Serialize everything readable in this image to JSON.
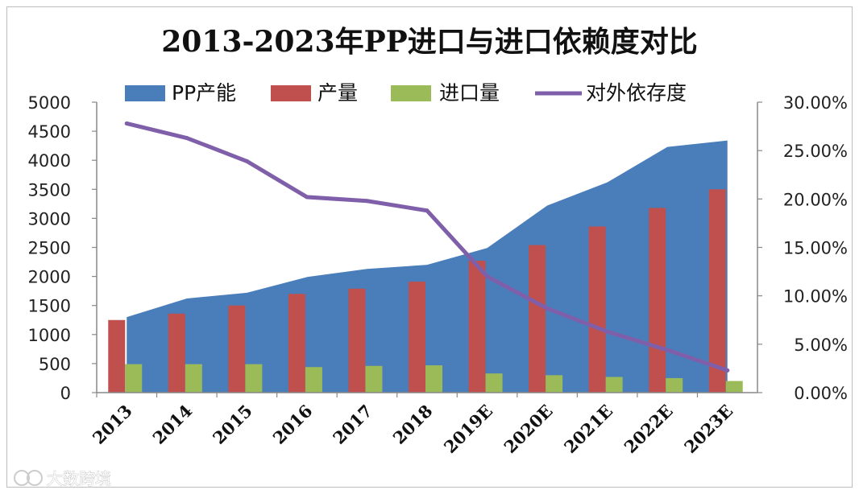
{
  "chart_data": {
    "type": "bar",
    "title": "2013-2023年PP进口与进口依赖度对比",
    "categories": [
      "2013",
      "2014",
      "2015",
      "2016",
      "2017",
      "2018",
      "2019E",
      "2020E",
      "2021E",
      "2022E",
      "2023E"
    ],
    "series": [
      {
        "name": "PP产能",
        "kind": "area",
        "axis": "left",
        "color": "#4a7ebb",
        "values": [
          1300,
          1620,
          1720,
          1990,
          2130,
          2200,
          2490,
          3220,
          3620,
          4230,
          4340
        ]
      },
      {
        "name": "产量",
        "kind": "bar",
        "axis": "left",
        "color": "#c0504d",
        "values": [
          1250,
          1360,
          1500,
          1700,
          1790,
          1910,
          2270,
          2540,
          2860,
          3180,
          3500
        ]
      },
      {
        "name": "进口量",
        "kind": "bar",
        "axis": "left",
        "color": "#9bbb59",
        "values": [
          490,
          490,
          490,
          440,
          460,
          470,
          330,
          300,
          270,
          250,
          200
        ]
      },
      {
        "name": "对外依存度",
        "kind": "line",
        "axis": "right",
        "color": "#7f5fa9",
        "values": [
          27.8,
          26.3,
          23.9,
          20.2,
          19.8,
          18.8,
          12.0,
          8.7,
          6.3,
          4.4,
          2.3
        ]
      }
    ],
    "ylim": [
      0,
      5000
    ],
    "yticks": [
      "5000",
      "4500",
      "4000",
      "3500",
      "3000",
      "2500",
      "2000",
      "1500",
      "1000",
      "500",
      "0"
    ],
    "y2lim": [
      0,
      30
    ],
    "y2ticks": [
      "30.00%",
      "25.00%",
      "20.00%",
      "15.00%",
      "10.00%",
      "5.00%",
      "0.00%"
    ],
    "legend": "top",
    "grid": false
  },
  "watermark": {
    "text": "大数跨境"
  }
}
